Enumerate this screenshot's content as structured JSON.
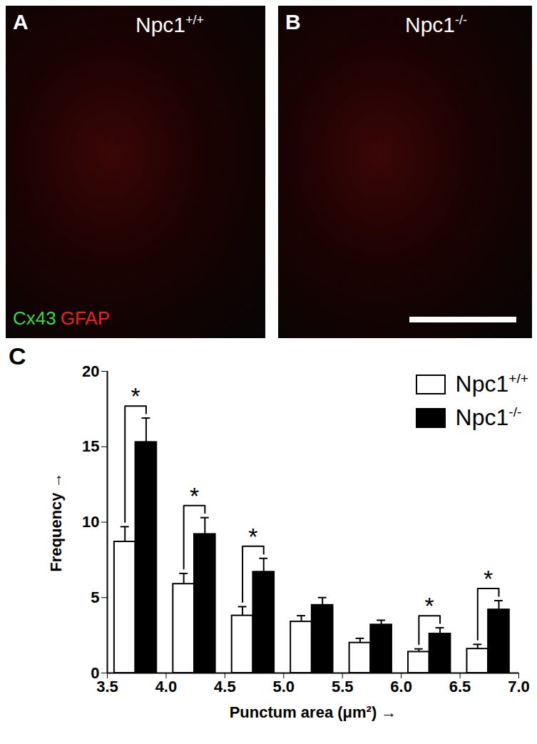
{
  "panels": [
    {
      "letter": "A",
      "label": "Npc1+/+",
      "stains": [
        {
          "text": "Cx43",
          "color": "#33dd33"
        },
        {
          "text": "GFAP",
          "color": "#e8231e"
        }
      ]
    },
    {
      "letter": "B",
      "label": "Npc1-/-"
    },
    {
      "letter": "C"
    }
  ],
  "chart_data": {
    "type": "bar",
    "xlabel": "Punctum area (μm²)",
    "ylabel": "Frequency",
    "bins": [
      3.5,
      4.0,
      4.5,
      5.0,
      5.5,
      6.0,
      6.5,
      7.0
    ],
    "series": [
      {
        "name": "Npc1+/+",
        "color": "#ffffff",
        "values": [
          8.7,
          5.9,
          3.8,
          3.4,
          2.0,
          1.4,
          1.6
        ],
        "errors": [
          1.0,
          0.7,
          0.6,
          0.4,
          0.3,
          0.2,
          0.3
        ]
      },
      {
        "name": "Npc1-/-",
        "color": "#000000",
        "values": [
          15.3,
          9.2,
          6.7,
          4.5,
          3.2,
          2.6,
          4.2
        ],
        "errors": [
          1.6,
          1.1,
          0.9,
          0.5,
          0.3,
          0.4,
          0.6
        ]
      }
    ],
    "significance": [
      "*",
      "*",
      "*",
      null,
      null,
      "*",
      "*"
    ],
    "xlim": [
      3.5,
      7.0
    ],
    "xticks": [
      {
        "value": 3.5,
        "label": "3.5"
      },
      {
        "value": 4.0,
        "label": "4.0"
      },
      {
        "value": 4.5,
        "label": "4.5"
      },
      {
        "value": 5.0,
        "label": "5.0"
      },
      {
        "value": 5.5,
        "label": "5.5"
      },
      {
        "value": 6.0,
        "label": "6.0"
      },
      {
        "value": 6.5,
        "label": "6.5"
      },
      {
        "value": 7.0,
        "label": "7.0"
      }
    ],
    "ylim": [
      0,
      20
    ],
    "yticks": [
      0,
      5,
      10,
      15,
      20
    ],
    "legend": "top-right"
  }
}
